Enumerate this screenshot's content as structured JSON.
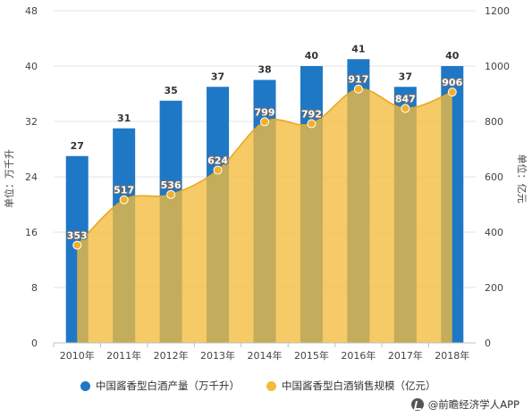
{
  "chart_data": {
    "type": "bar+area",
    "categories": [
      "2010年",
      "2011年",
      "2012年",
      "2013年",
      "2014年",
      "2015年",
      "2016年",
      "2017年",
      "2018年"
    ],
    "series": [
      {
        "name": "中国酱香型白酒产量（万千升）",
        "type": "bar",
        "axis": "left",
        "values": [
          27,
          31,
          35,
          37,
          38,
          40,
          41,
          37,
          40
        ],
        "color": "#1f78c6"
      },
      {
        "name": "中国酱香型白酒销售规模（亿元）",
        "type": "area",
        "axis": "right",
        "values": [
          353,
          517,
          536,
          624,
          799,
          792,
          917,
          847,
          906
        ],
        "color": "#f2bb3c"
      }
    ],
    "y_left": {
      "label": "单位：万千升",
      "ticks": [
        0,
        8,
        16,
        24,
        32,
        40,
        48
      ],
      "ylim": [
        0,
        48
      ]
    },
    "y_right": {
      "label": "单位：亿元",
      "ticks": [
        0,
        200,
        400,
        600,
        800,
        1000,
        1200
      ],
      "ylim": [
        0,
        1200
      ]
    },
    "legend_position": "bottom"
  },
  "footer": {
    "source_text": "@前瞻经济学人APP"
  }
}
